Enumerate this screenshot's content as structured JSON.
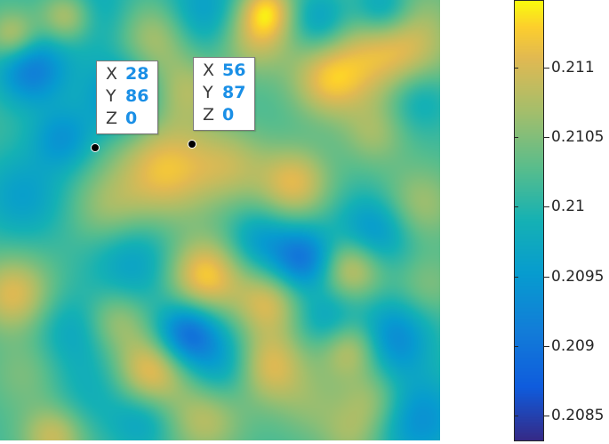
{
  "chart_data": {
    "type": "heatmap",
    "colormap": "parula",
    "colorbar": {
      "ticks": [
        0.2085,
        0.209,
        0.2095,
        0.21,
        0.2105,
        0.211
      ],
      "tick_labels": [
        "0.2085",
        "0.209",
        "0.2095",
        "0.21",
        "0.2105",
        "0.211"
      ],
      "range": [
        0.20832,
        0.21148
      ]
    }
  },
  "datatips": [
    {
      "x_label": "X",
      "x": "28",
      "y_label": "Y",
      "y": "86",
      "z_label": "Z",
      "z": "0"
    },
    {
      "x_label": "X",
      "x": "56",
      "y_label": "Y",
      "y": "87",
      "z_label": "Z",
      "z": "0"
    }
  ],
  "colors": {
    "datatip_value": "#1a8fe6"
  }
}
